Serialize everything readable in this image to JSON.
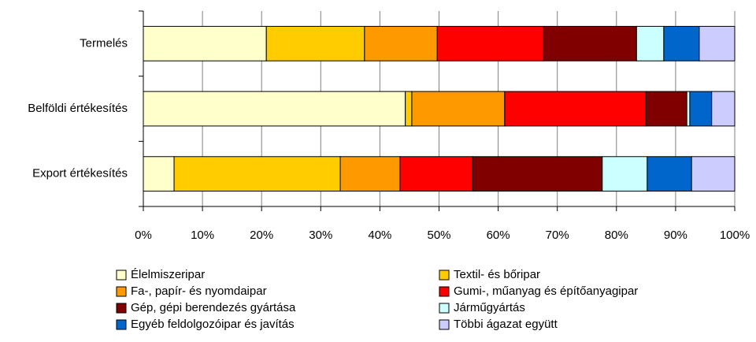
{
  "chart_data": {
    "type": "stacked_barh",
    "categories": [
      "Termelés",
      "Belföldi értékesítés",
      "Export értékesítés"
    ],
    "series": [
      {
        "name": "Élelmiszeripar",
        "color": "#ffffcc",
        "values": [
          20.8,
          44.3,
          5.2
        ]
      },
      {
        "name": "Textil- és bőripar",
        "color": "#ffcc00",
        "values": [
          16.6,
          1.1,
          28.1
        ]
      },
      {
        "name": "Fa-, papír- és nyomdaipar",
        "color": "#ff9900",
        "values": [
          12.3,
          15.7,
          10.1
        ]
      },
      {
        "name": "Gumi-, műanyag és építőanyagipar",
        "color": "#ff0000",
        "values": [
          17.9,
          23.9,
          12.3
        ]
      },
      {
        "name": "Gép, gépi berendezés gyártása",
        "color": "#800000",
        "values": [
          15.8,
          6.9,
          21.9
        ]
      },
      {
        "name": "Járműgyártás",
        "color": "#ccffff",
        "values": [
          4.6,
          0.5,
          7.6
        ]
      },
      {
        "name": "Egyéb feldolgozóipar és javítás",
        "color": "#0066cc",
        "values": [
          6.0,
          3.7,
          7.5
        ]
      },
      {
        "name": "Többi ágazat együtt",
        "color": "#ccccff",
        "values": [
          6.0,
          3.9,
          7.3
        ]
      }
    ],
    "xlim": [
      0,
      100
    ],
    "xticks": [
      {
        "value": 0,
        "label": "0%"
      },
      {
        "value": 10,
        "label": "10%"
      },
      {
        "value": 20,
        "label": "20%"
      },
      {
        "value": 30,
        "label": "30%"
      },
      {
        "value": 40,
        "label": "40%"
      },
      {
        "value": 50,
        "label": "50%"
      },
      {
        "value": 60,
        "label": "60%"
      },
      {
        "value": 70,
        "label": "70%"
      },
      {
        "value": 80,
        "label": "80%"
      },
      {
        "value": 90,
        "label": "90%"
      },
      {
        "value": 100,
        "label": "100%"
      }
    ],
    "grid": true,
    "legend": "bottom"
  }
}
